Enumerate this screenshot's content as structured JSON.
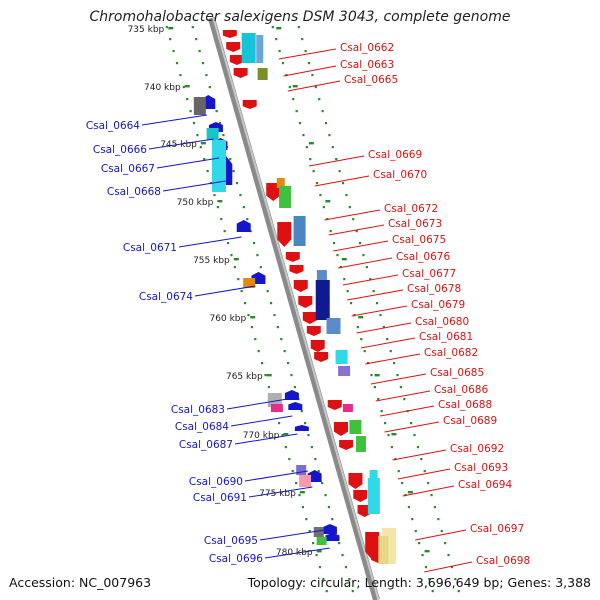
{
  "title": "Chromohalobacter salexigens DSM 3043, complete genome",
  "accession": "Accession: NC_007963",
  "summary": "Topology: circular; Length: 3,696,649 bp; Genes: 3,388",
  "scale_labels": [
    "735 kbp",
    "740 kbp",
    "745 kbp",
    "750 kbp",
    "755 kbp",
    "760 kbp",
    "765 kbp",
    "770 kbp",
    "775 kbp",
    "780 kbp"
  ],
  "genes_right": [
    "Csal_0662",
    "Csal_0663",
    "Csal_0665",
    "Csal_0669",
    "Csal_0670",
    "Csal_0672",
    "Csal_0673",
    "Csal_0675",
    "Csal_0676",
    "Csal_0677",
    "Csal_0678",
    "Csal_0679",
    "Csal_0680",
    "Csal_0681",
    "Csal_0682",
    "Csal_0685",
    "Csal_0686",
    "Csal_0688",
    "Csal_0689",
    "Csal_0692",
    "Csal_0693",
    "Csal_0694",
    "Csal_0697",
    "Csal_0698"
  ],
  "genes_left": [
    "Csal_0664",
    "Csal_0666",
    "Csal_0667",
    "Csal_0668",
    "Csal_0671",
    "Csal_0674",
    "Csal_0683",
    "Csal_0684",
    "Csal_0687",
    "Csal_0690",
    "Csal_0691",
    "Csal_0695",
    "Csal_0696"
  ],
  "colors": {
    "forward_strand": "#dd1111",
    "reverse_strand": "#1515cc",
    "backbone": "#8a8a8a",
    "tick": "#2a8a2a"
  }
}
